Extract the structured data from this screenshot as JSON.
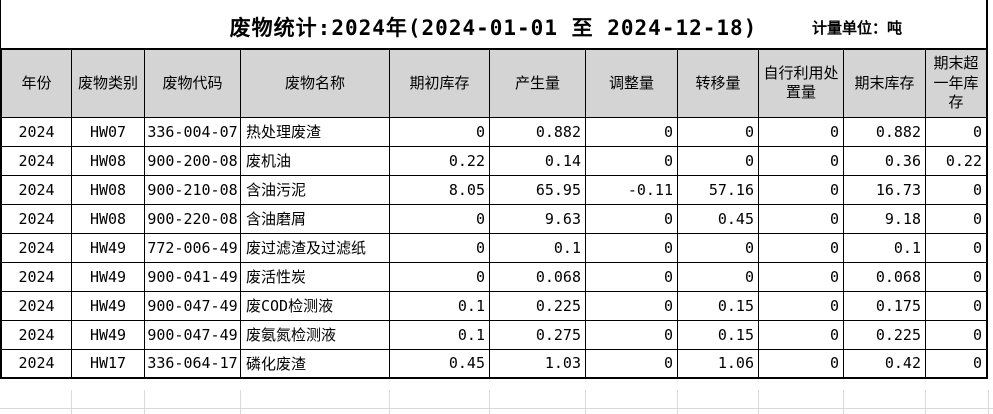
{
  "header": {
    "title": "废物统计:2024年(2024-01-01 至 2024-12-18)",
    "unit_label": "计量单位：吨"
  },
  "table": {
    "columns": [
      "年份",
      "废物类别",
      "废物代码",
      "废物名称",
      "期初库存",
      "产生量",
      "调整量",
      "转移量",
      "自行利用处置量",
      "期末库存",
      "期末超一年库存"
    ],
    "rows": [
      [
        "2024",
        "HW07",
        "336-004-07",
        "热处理废渣",
        "0",
        "0.882",
        "0",
        "0",
        "0",
        "0.882",
        "0"
      ],
      [
        "2024",
        "HW08",
        "900-200-08",
        "废机油",
        "0.22",
        "0.14",
        "0",
        "0",
        "0",
        "0.36",
        "0.22"
      ],
      [
        "2024",
        "HW08",
        "900-210-08",
        "含油污泥",
        "8.05",
        "65.95",
        "-0.11",
        "57.16",
        "0",
        "16.73",
        "0"
      ],
      [
        "2024",
        "HW08",
        "900-220-08",
        "含油磨屑",
        "0",
        "9.63",
        "0",
        "0.45",
        "0",
        "9.18",
        "0"
      ],
      [
        "2024",
        "HW49",
        "772-006-49",
        "废过滤渣及过滤纸",
        "0",
        "0.1",
        "0",
        "0",
        "0",
        "0.1",
        "0"
      ],
      [
        "2024",
        "HW49",
        "900-041-49",
        "废活性炭",
        "0",
        "0.068",
        "0",
        "0",
        "0",
        "0.068",
        "0"
      ],
      [
        "2024",
        "HW49",
        "900-047-49",
        "废COD检测液",
        "0.1",
        "0.225",
        "0",
        "0.15",
        "0",
        "0.175",
        "0"
      ],
      [
        "2024",
        "HW49",
        "900-047-49",
        "废氨氮检测液",
        "0.1",
        "0.275",
        "0",
        "0.15",
        "0",
        "0.225",
        "0"
      ],
      [
        "2024",
        "HW17",
        "336-064-17",
        "磷化废渣",
        "0.45",
        "1.03",
        "0",
        "1.06",
        "0",
        "0.42",
        "0"
      ]
    ]
  },
  "colors": {
    "header_bg": "#d4d4d4",
    "table_border": "#000000",
    "empty_grid_line": "#d9d9d9",
    "background": "#ffffff"
  }
}
